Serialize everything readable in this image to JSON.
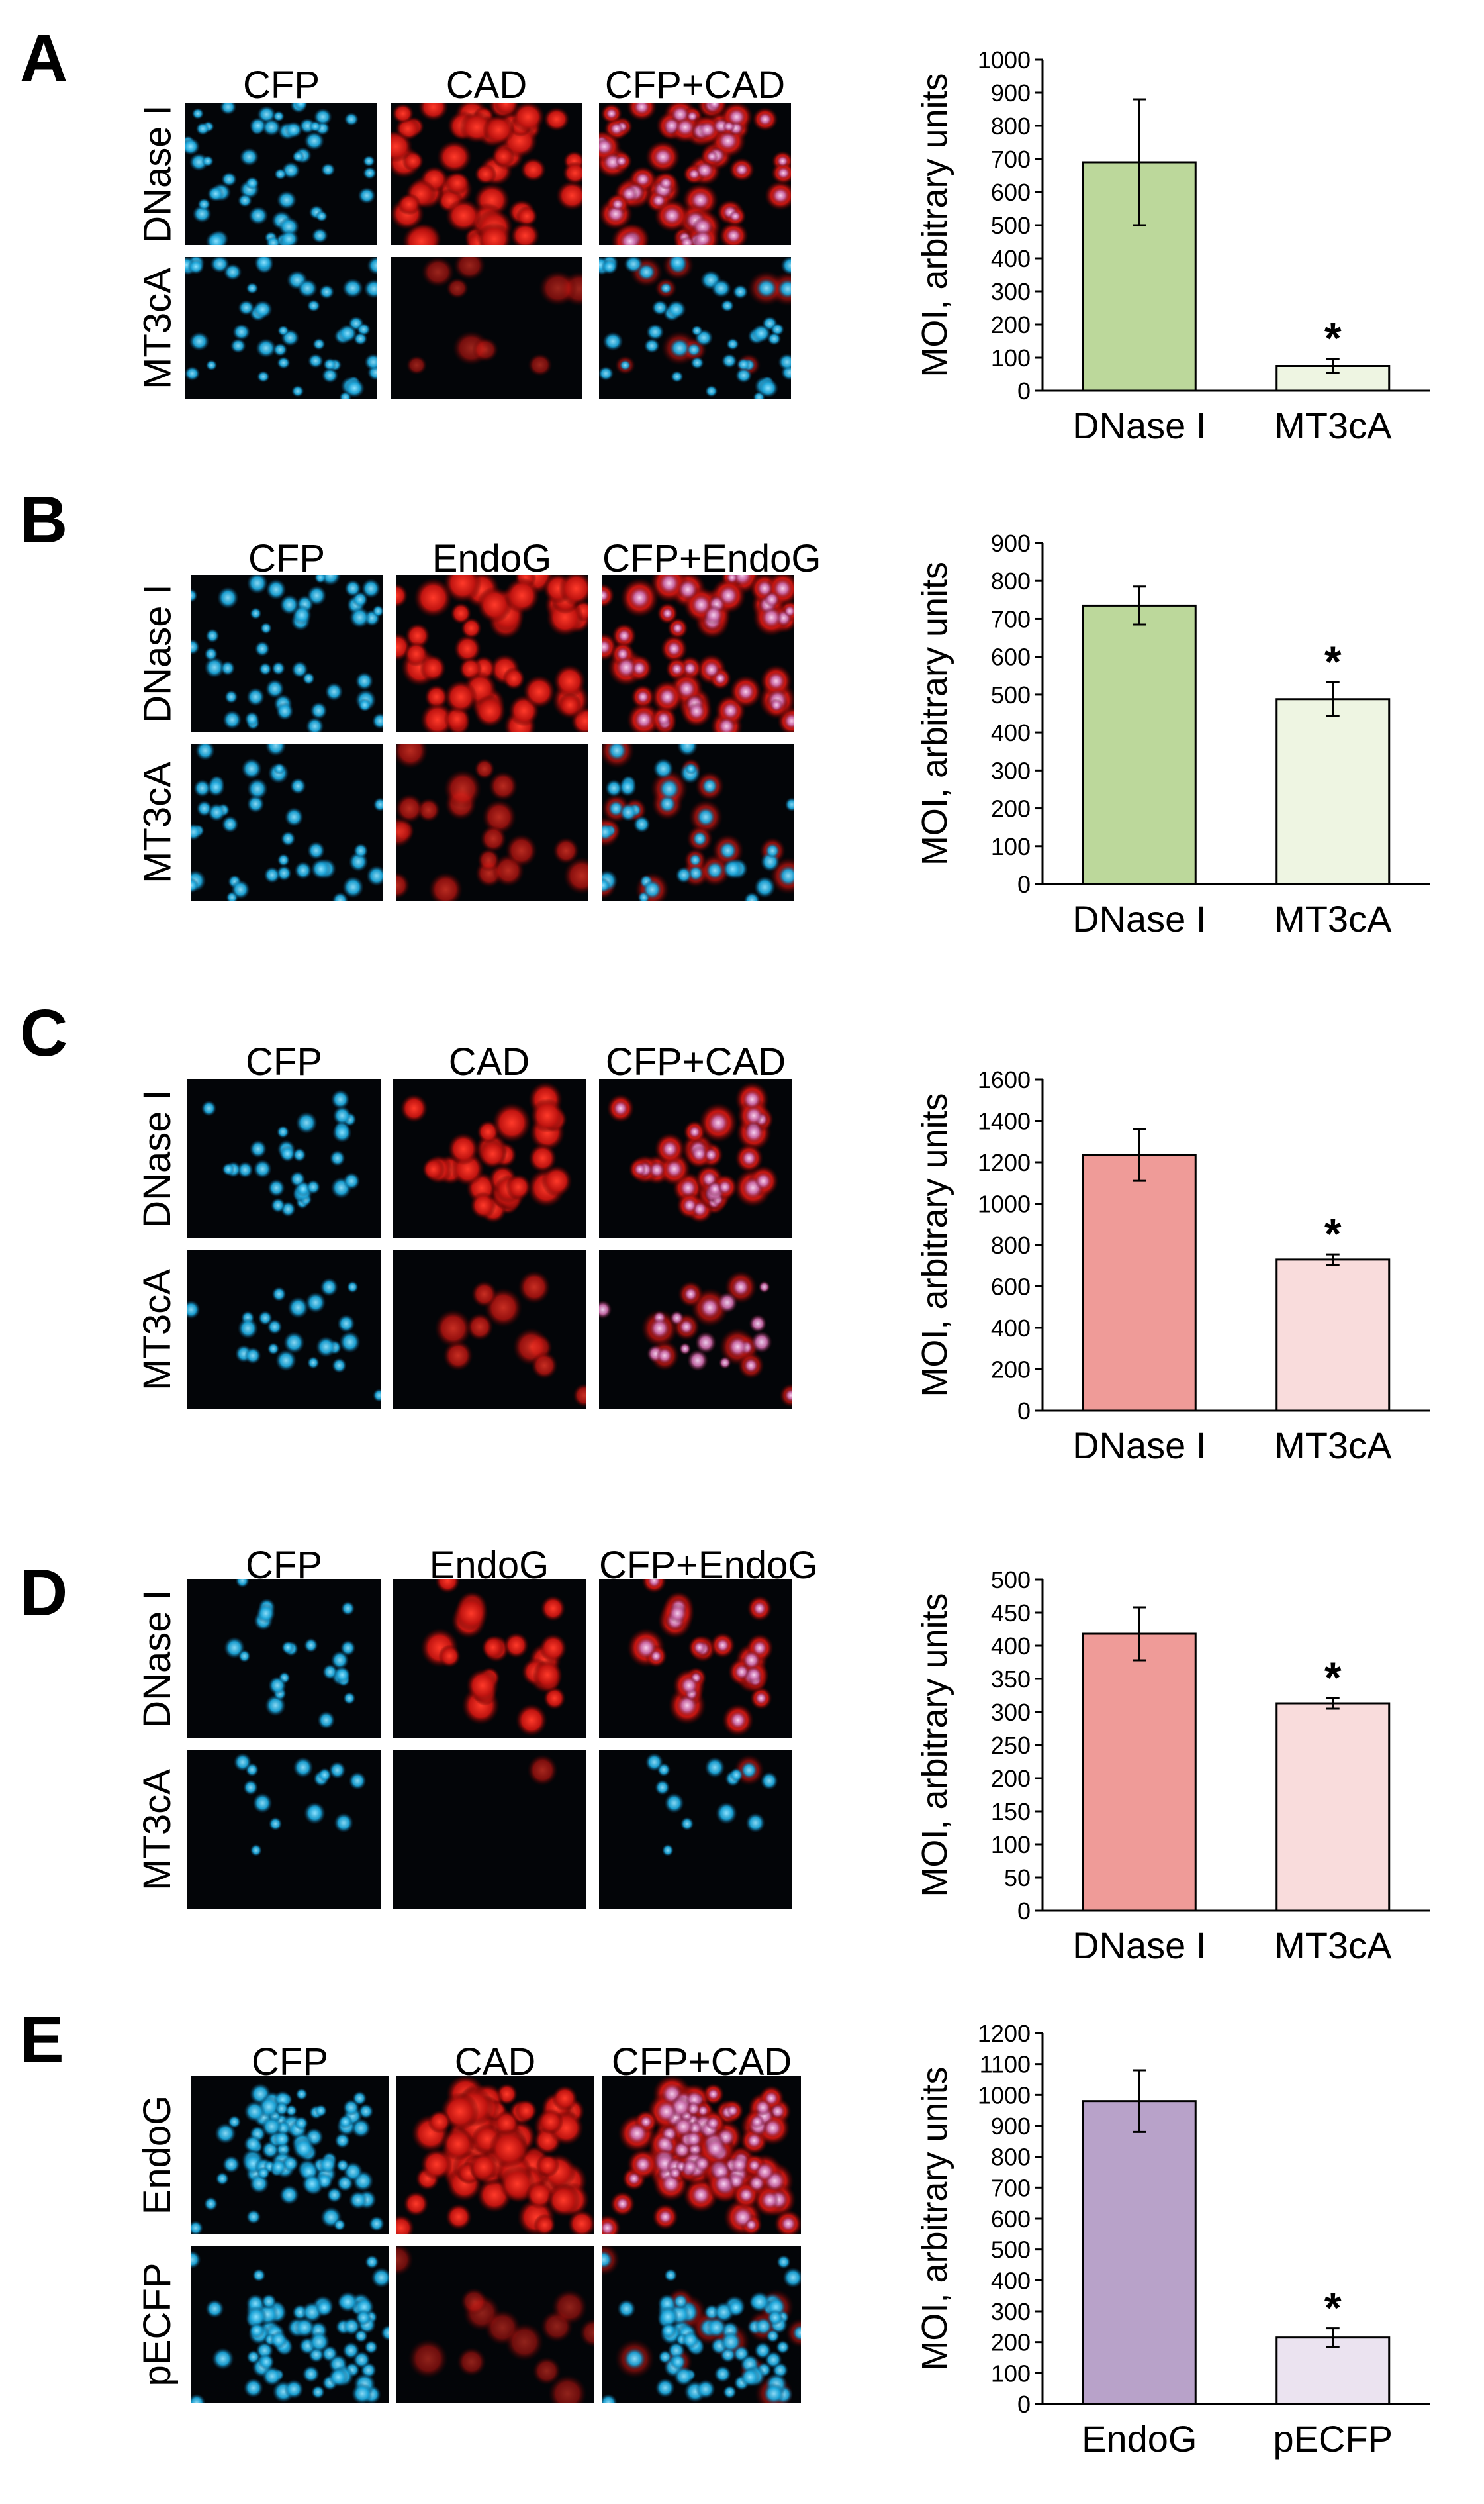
{
  "figure": {
    "panels": [
      {
        "letter": "A",
        "columns": [
          "CFP",
          "CAD",
          "CFP+CAD"
        ],
        "rows": [
          "DNase I",
          "MT3cA"
        ],
        "colors": {
          "bar1": "#bcd89b",
          "bar2": "#eef5e2"
        },
        "chart_data": {
          "type": "bar",
          "ylabel": "MOI, arbitrary units",
          "categories": [
            "DNase I",
            "MT3cA"
          ],
          "values": [
            690,
            75
          ],
          "error": [
            190,
            22
          ],
          "ylim": [
            0,
            1000
          ],
          "ytick_step": 100,
          "significance": [
            null,
            "*"
          ]
        }
      },
      {
        "letter": "B",
        "columns": [
          "CFP",
          "EndoG",
          "CFP+EndoG"
        ],
        "rows": [
          "DNase I",
          "MT3cA"
        ],
        "colors": {
          "bar1": "#bcd89b",
          "bar2": "#eef5e2"
        },
        "chart_data": {
          "type": "bar",
          "ylabel": "MOI, arbitrary units",
          "categories": [
            "DNase I",
            "MT3cA"
          ],
          "values": [
            735,
            488
          ],
          "error": [
            50,
            45
          ],
          "ylim": [
            0,
            900
          ],
          "ytick_step": 100,
          "significance": [
            null,
            "*"
          ]
        }
      },
      {
        "letter": "C",
        "columns": [
          "CFP",
          "CAD",
          "CFP+CAD"
        ],
        "rows": [
          "DNase I",
          "MT3cA"
        ],
        "colors": {
          "bar1": "#ef9b98",
          "bar2": "#f9dcdc"
        },
        "chart_data": {
          "type": "bar",
          "ylabel": "MOI, arbitrary units",
          "categories": [
            "DNase I",
            "MT3cA"
          ],
          "values": [
            1235,
            730
          ],
          "error": [
            125,
            25
          ],
          "ylim": [
            0,
            1600
          ],
          "ytick_step": 200,
          "significance": [
            null,
            "*"
          ]
        }
      },
      {
        "letter": "D",
        "columns": [
          "CFP",
          "EndoG",
          "CFP+EndoG"
        ],
        "rows": [
          "DNase I",
          "MT3cA"
        ],
        "colors": {
          "bar1": "#ef9b98",
          "bar2": "#f9dcdc"
        },
        "chart_data": {
          "type": "bar",
          "ylabel": "MOI, arbitrary units",
          "categories": [
            "DNase I",
            "MT3cA"
          ],
          "values": [
            418,
            313
          ],
          "error": [
            40,
            8
          ],
          "ylim": [
            0,
            500
          ],
          "ytick_step": 50,
          "significance": [
            null,
            "*"
          ]
        }
      },
      {
        "letter": "E",
        "columns": [
          "CFP",
          "CAD",
          "CFP+CAD"
        ],
        "rows": [
          "EndoG",
          "pECFP"
        ],
        "colors": {
          "bar1": "#b8a2c9",
          "bar2": "#ebe3f0"
        },
        "chart_data": {
          "type": "bar",
          "ylabel": "MOI, arbitrary units",
          "categories": [
            "EndoG",
            "pECFP"
          ],
          "values": [
            980,
            215
          ],
          "error": [
            100,
            30
          ],
          "ylim": [
            0,
            1200
          ],
          "ytick_step": 100,
          "significance": [
            null,
            "*"
          ]
        }
      }
    ]
  }
}
